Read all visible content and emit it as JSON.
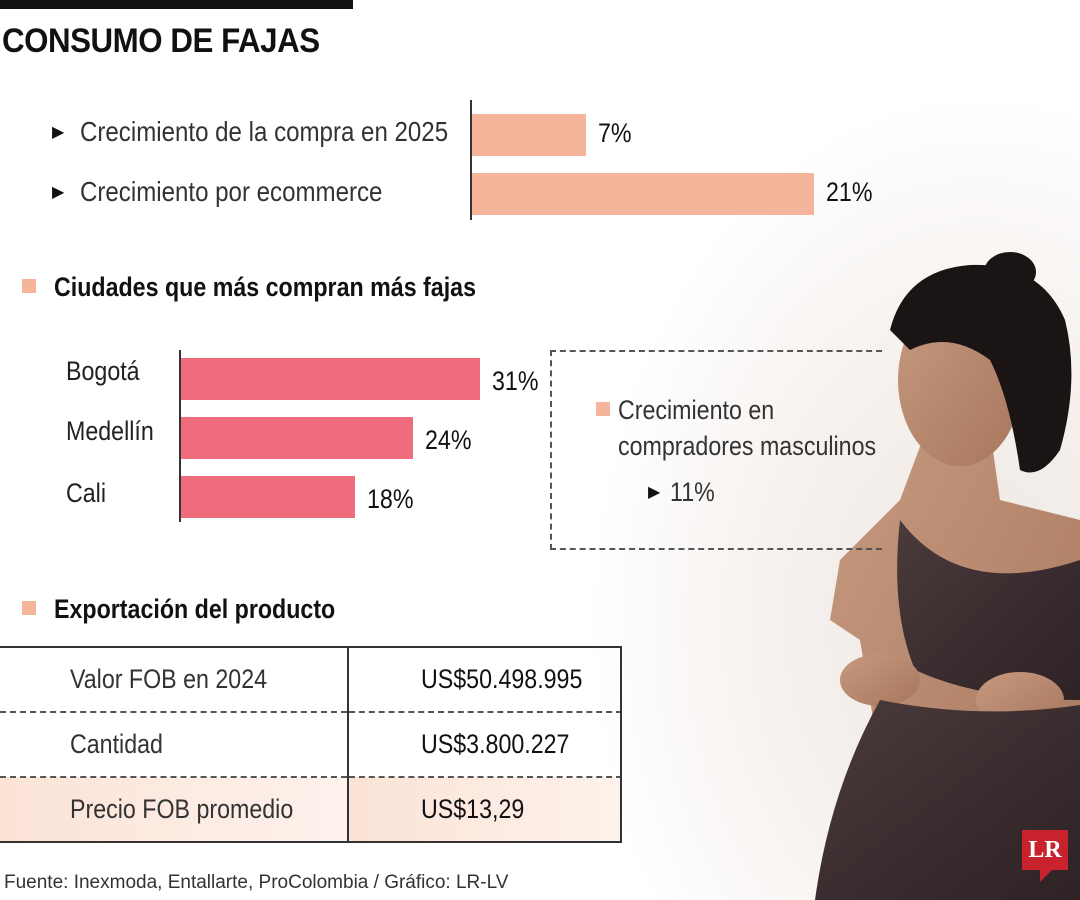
{
  "title": "CONSUMO DE FAJAS",
  "colors": {
    "growth_bar": "#f5b59b",
    "city_bar": "#ee6c7c",
    "accent_square": "#f5b59b",
    "logo": "#c8232c"
  },
  "chart_data": [
    {
      "type": "bar",
      "orientation": "horizontal",
      "categories": [
        "Crecimiento de la compra en 2025",
        "Crecimiento por ecommerce"
      ],
      "values": [
        7,
        21
      ],
      "value_labels": [
        "7%",
        "21%"
      ],
      "unit": "%",
      "title": ""
    },
    {
      "type": "bar",
      "orientation": "horizontal",
      "title": "Ciudades que más compran más fajas",
      "categories": [
        "Bogotá",
        "Medellín",
        "Cali"
      ],
      "values": [
        31,
        24,
        18
      ],
      "value_labels": [
        "31%",
        "24%",
        "18%"
      ],
      "unit": "%"
    }
  ],
  "side_note": {
    "line1": "Crecimiento en",
    "line2": "compradores masculinos",
    "value": "11%"
  },
  "export": {
    "heading": "Exportación del producto",
    "rows": [
      {
        "label": "Valor FOB en 2024",
        "value": "US$50.498.995"
      },
      {
        "label": "Cantidad",
        "value": "US$3.800.227"
      },
      {
        "label": "Precio FOB promedio",
        "value": "US$13,29"
      }
    ]
  },
  "source": "Fuente: Inexmoda, Entallarte, ProColombia / Gráfico: LR-LV",
  "logo_text": "LR"
}
